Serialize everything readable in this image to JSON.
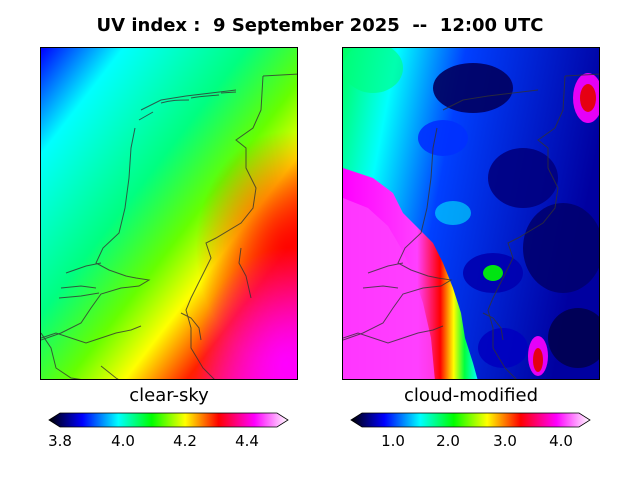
{
  "title": "UV index :  9 September 2025  --  12:00 UTC",
  "panels": {
    "left": {
      "label": "clear-sky",
      "colorbar_ticks": [
        "3.8",
        "4.0",
        "4.2",
        "4.4"
      ]
    },
    "right": {
      "label": "cloud-modified",
      "colorbar_ticks": [
        "1.0",
        "2.0",
        "3.0",
        "4.0"
      ]
    }
  },
  "colormap": [
    "#000000",
    "#0000ff",
    "#00ffff",
    "#00ff00",
    "#ffff00",
    "#ff0000",
    "#ff00ff",
    "#ffffff"
  ],
  "map_outline_color": "#333333"
}
